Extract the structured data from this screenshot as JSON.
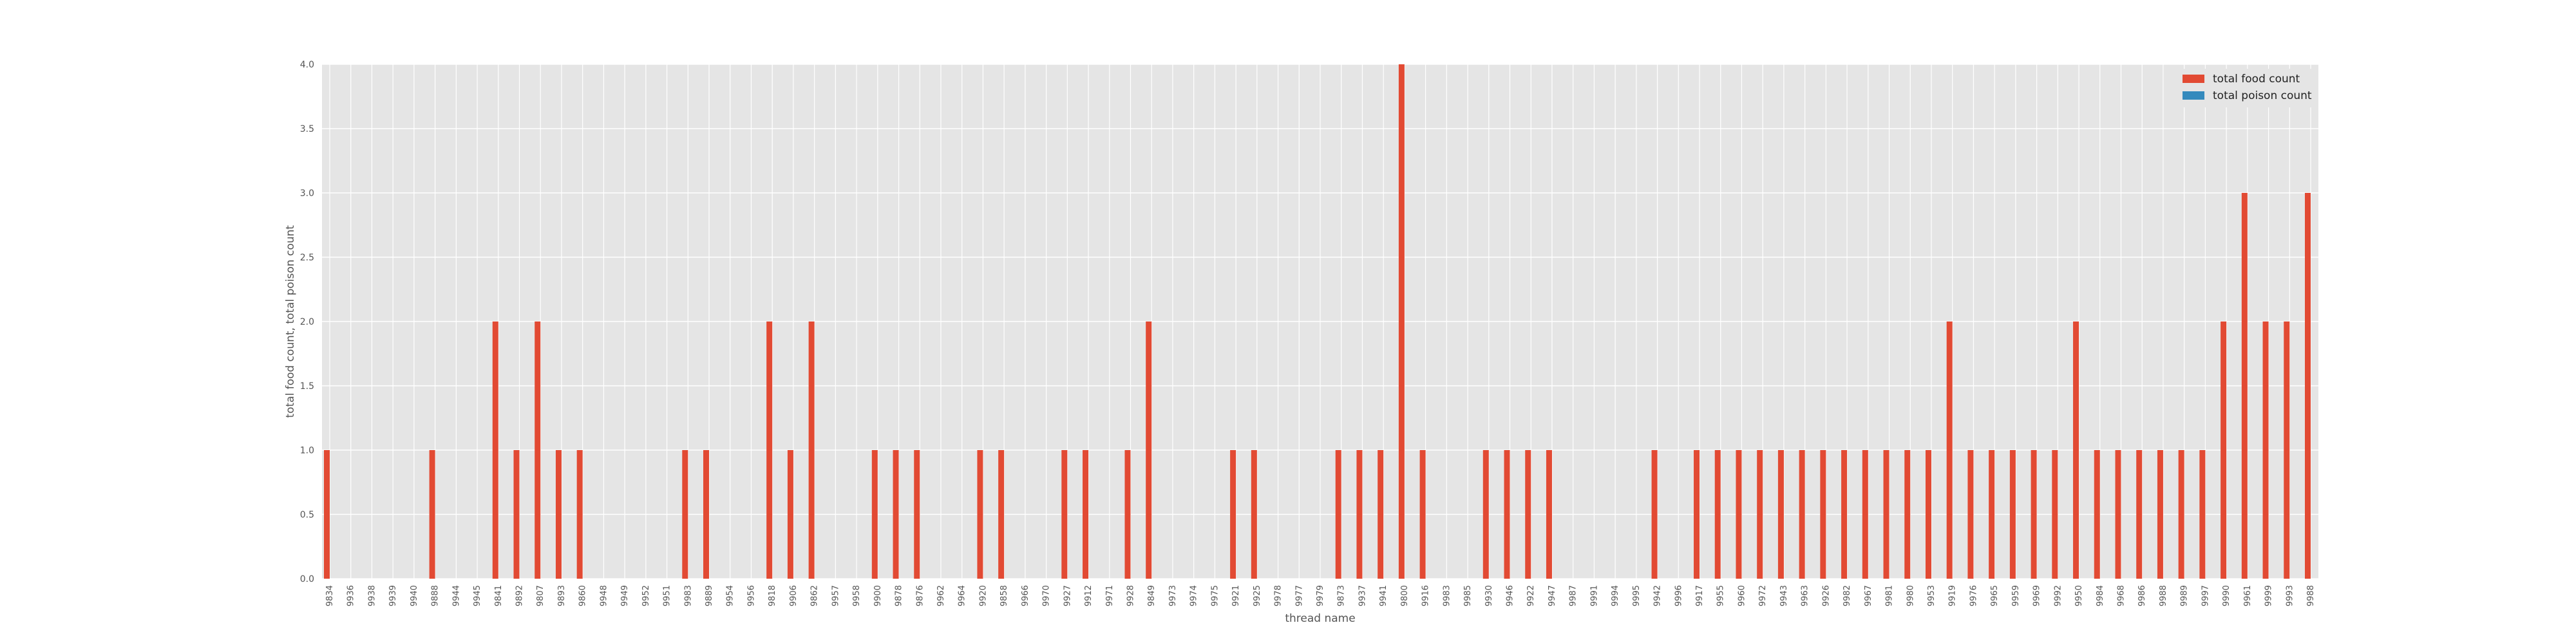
{
  "chart_data": {
    "type": "bar",
    "title": "",
    "xlabel": "thread name",
    "ylabel": "total food count, total poison count",
    "ylim": [
      0,
      4
    ],
    "yticks": [
      "0.0",
      "0.5",
      "1.0",
      "1.5",
      "2.0",
      "2.5",
      "3.0",
      "3.5",
      "4.0"
    ],
    "grid": true,
    "legend_position": "top-right",
    "categories": [
      "9834",
      "9936",
      "9938",
      "9939",
      "9940",
      "9888",
      "9944",
      "9945",
      "9841",
      "9892",
      "9807",
      "9893",
      "9860",
      "9948",
      "9949",
      "9952",
      "9951",
      "9983",
      "9889",
      "9954",
      "9956",
      "9818",
      "9906",
      "9862",
      "9957",
      "9958",
      "9900",
      "9878",
      "9876",
      "9962",
      "9964",
      "9920",
      "9858",
      "9966",
      "9970",
      "9927",
      "9912",
      "9971",
      "9928",
      "9849",
      "9973",
      "9974",
      "9975",
      "9921",
      "9925",
      "9978",
      "9977",
      "9979",
      "9873",
      "9937",
      "9941",
      "9800",
      "9916",
      "9983",
      "9985",
      "9930",
      "9946",
      "9922",
      "9947",
      "9987",
      "9991",
      "9994",
      "9995",
      "9942",
      "9996",
      "9917",
      "9955",
      "9960",
      "9972",
      "9943",
      "9963",
      "9926",
      "9982",
      "9967",
      "9981",
      "9980",
      "9953",
      "9919",
      "9976",
      "9965",
      "9959",
      "9969",
      "9992",
      "9950",
      "9984",
      "9968",
      "9986",
      "9988",
      "9989",
      "9997",
      "9990",
      "9961",
      "9999",
      "9993",
      "9988"
    ],
    "series": [
      {
        "name": "total food count",
        "color": "#e24a33",
        "values": [
          1,
          0,
          0,
          0,
          0,
          1,
          0,
          0,
          2,
          1,
          2,
          1,
          1,
          0,
          0,
          0,
          0,
          1,
          1,
          0,
          0,
          2,
          1,
          2,
          0,
          0,
          1,
          1,
          1,
          0,
          0,
          1,
          1,
          0,
          0,
          1,
          1,
          0,
          1,
          2,
          0,
          0,
          0,
          1,
          1,
          0,
          0,
          0,
          1,
          1,
          1,
          4,
          1,
          0,
          0,
          1,
          1,
          1,
          1,
          0,
          0,
          0,
          0,
          1,
          0,
          1,
          1,
          1,
          1,
          1,
          1,
          1,
          1,
          1,
          1,
          1,
          1,
          2,
          1,
          1,
          1,
          1,
          1,
          2,
          1,
          1,
          1,
          1,
          1,
          1,
          2,
          3,
          2,
          2,
          3
        ]
      },
      {
        "name": "total poison count",
        "color": "#348abd",
        "values": [
          0,
          0,
          0,
          0,
          0,
          0,
          0,
          0,
          0,
          0,
          0,
          0,
          0,
          0,
          0,
          0,
          0,
          0,
          0,
          0,
          0,
          0,
          0,
          0,
          0,
          0,
          0,
          0,
          0,
          0,
          0,
          0,
          0,
          0,
          0,
          0,
          0,
          0,
          0,
          0,
          0,
          0,
          0,
          0,
          0,
          0,
          0,
          0,
          0,
          0,
          0,
          0,
          0,
          0,
          0,
          0,
          0,
          0,
          0,
          0,
          0,
          0,
          0,
          0,
          0,
          0,
          0,
          0,
          0,
          0,
          0,
          0,
          0,
          0,
          0,
          0,
          0,
          0,
          0,
          0,
          0,
          0,
          0,
          0,
          0,
          0,
          0,
          0,
          0,
          0,
          0,
          0,
          0,
          0,
          0
        ]
      }
    ]
  },
  "colors": {
    "plot_background": "#e5e5e5",
    "grid": "#ffffff",
    "text": "#555555"
  }
}
